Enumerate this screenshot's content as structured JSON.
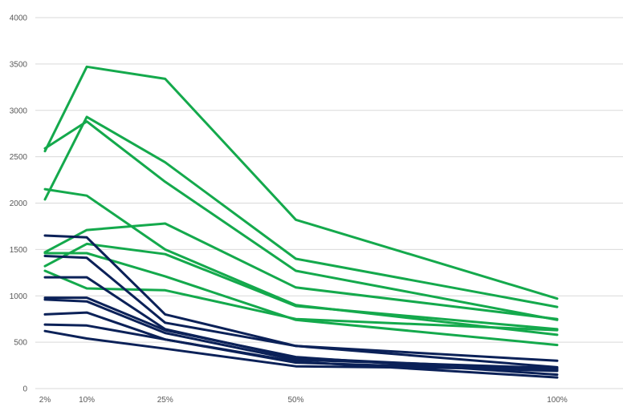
{
  "chart_data": {
    "type": "line",
    "x": [
      2,
      10,
      25,
      50,
      100
    ],
    "x_tick_labels": [
      "2%",
      "10%",
      "25%",
      "50%",
      "100%"
    ],
    "ylim": [
      0,
      4000
    ],
    "y_ticks": [
      0,
      500,
      1000,
      1500,
      2000,
      2500,
      3000,
      3500,
      4000
    ],
    "grid": true,
    "legend": "none",
    "colors": {
      "green": "#14a94c",
      "navy": "#0b2158",
      "grid": "#d9d9d9",
      "text": "#595959"
    },
    "series": [
      {
        "color": "green",
        "values": [
          2560,
          3470,
          3340,
          1820,
          970
        ]
      },
      {
        "color": "green",
        "values": [
          2590,
          2880,
          2230,
          1270,
          740
        ]
      },
      {
        "color": "green",
        "values": [
          2040,
          2930,
          2440,
          1400,
          880
        ]
      },
      {
        "color": "green",
        "values": [
          2150,
          2080,
          1500,
          900,
          580
        ]
      },
      {
        "color": "green",
        "values": [
          1470,
          1710,
          1780,
          1090,
          750
        ]
      },
      {
        "color": "green",
        "values": [
          1320,
          1560,
          1450,
          890,
          640
        ]
      },
      {
        "color": "green",
        "values": [
          1460,
          1460,
          1210,
          740,
          470
        ]
      },
      {
        "color": "green",
        "values": [
          1270,
          1080,
          1060,
          750,
          630
        ]
      },
      {
        "color": "navy",
        "values": [
          1650,
          1630,
          800,
          460,
          300
        ]
      },
      {
        "color": "navy",
        "values": [
          1430,
          1410,
          710,
          460,
          230
        ]
      },
      {
        "color": "navy",
        "values": [
          1200,
          1200,
          640,
          330,
          200
        ]
      },
      {
        "color": "navy",
        "values": [
          980,
          980,
          630,
          340,
          150
        ]
      },
      {
        "color": "navy",
        "values": [
          960,
          940,
          600,
          310,
          220
        ]
      },
      {
        "color": "navy",
        "values": [
          800,
          820,
          530,
          280,
          190
        ]
      },
      {
        "color": "navy",
        "values": [
          690,
          680,
          530,
          290,
          120
        ]
      },
      {
        "color": "navy",
        "values": [
          620,
          540,
          430,
          240,
          210
        ]
      }
    ]
  }
}
